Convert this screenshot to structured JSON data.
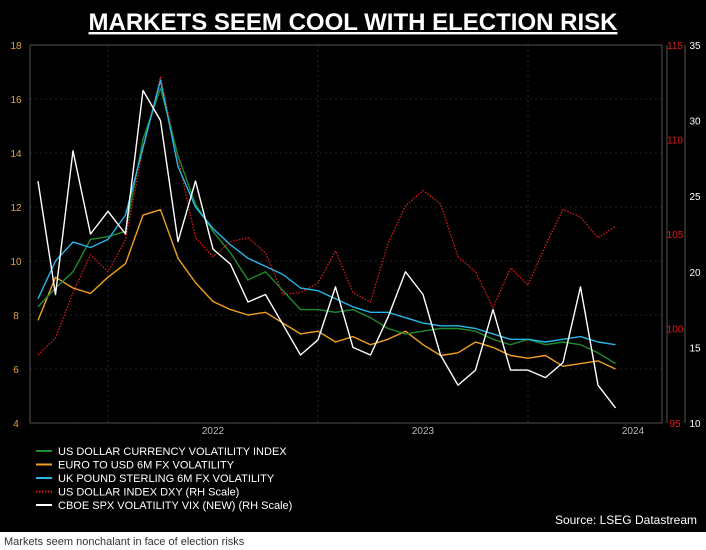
{
  "caption": "Markets seem nonchalant in face of election risks",
  "colors": {
    "background": "#000000",
    "title": "#ffffff",
    "left_axis": "#e8a33c",
    "right_axis_dxy": "#e01a1a",
    "right_axis_vix": "#ffffff",
    "grid": "#444444"
  },
  "chart_data": {
    "type": "line",
    "title": "MARKETS SEEM COOL WITH ELECTION RISK",
    "source": "Source: LSEG Datastream",
    "grid": true,
    "legend_position": "bottom-left",
    "x_ticks": [
      "2022",
      "2023",
      "2024"
    ],
    "x_dates": [
      "2021-09",
      "2021-10",
      "2021-11",
      "2021-12",
      "2022-01",
      "2022-02",
      "2022-03",
      "2022-04",
      "2022-05",
      "2022-06",
      "2022-07",
      "2022-08",
      "2022-09",
      "2022-10",
      "2022-11",
      "2022-12",
      "2023-01",
      "2023-02",
      "2023-03",
      "2023-04",
      "2023-05",
      "2023-06",
      "2023-07",
      "2023-08",
      "2023-09",
      "2023-10",
      "2023-11",
      "2023-12",
      "2024-01",
      "2024-02",
      "2024-03",
      "2024-04",
      "2024-05",
      "2024-06"
    ],
    "y_left": {
      "min": 4,
      "max": 18,
      "ticks": [
        "4",
        "6",
        "8",
        "10",
        "12",
        "14",
        "16",
        "18"
      ]
    },
    "y_right_dxy": {
      "min": 95,
      "max": 115,
      "ticks": [
        "95",
        "100",
        "105",
        "110",
        "115"
      ]
    },
    "y_right_vix": {
      "min": 10,
      "max": 35,
      "ticks": [
        "10",
        "15",
        "20",
        "25",
        "30",
        "35"
      ]
    },
    "series": [
      {
        "name": "US DOLLAR CURRENCY VOLATILITY INDEX",
        "axis": "left",
        "color": "#1f8a2e",
        "values": [
          8.3,
          9.0,
          9.6,
          10.8,
          10.9,
          11.1,
          14.5,
          16.4,
          13.9,
          12.1,
          11.1,
          10.3,
          9.3,
          9.6,
          8.9,
          8.2,
          8.2,
          8.1,
          8.2,
          7.9,
          7.5,
          7.3,
          7.4,
          7.5,
          7.5,
          7.4,
          7.1,
          6.9,
          7.1,
          6.9,
          7.0,
          6.9,
          6.6,
          6.2
        ]
      },
      {
        "name": "EURO TO USD 6M FX VOLATILITY",
        "axis": "left",
        "color": "#f0a020",
        "values": [
          7.8,
          9.4,
          9.0,
          8.8,
          9.4,
          9.9,
          11.7,
          11.9,
          10.1,
          9.2,
          8.5,
          8.2,
          8.0,
          8.1,
          7.7,
          7.3,
          7.4,
          7.0,
          7.2,
          6.9,
          7.1,
          7.4,
          6.9,
          6.5,
          6.6,
          7.0,
          6.8,
          6.5,
          6.4,
          6.5,
          6.1,
          6.2,
          6.3,
          6.0
        ]
      },
      {
        "name": "UK POUND STERLING 6M FX VOLATILITY",
        "axis": "left",
        "color": "#29b6e8",
        "values": [
          8.6,
          10.0,
          10.7,
          10.5,
          10.8,
          11.7,
          14.2,
          16.7,
          13.5,
          12.0,
          11.2,
          10.6,
          10.1,
          9.8,
          9.5,
          9.0,
          8.9,
          8.6,
          8.3,
          8.1,
          8.1,
          7.9,
          7.7,
          7.6,
          7.6,
          7.5,
          7.3,
          7.1,
          7.1,
          7.0,
          7.1,
          7.2,
          7.0,
          6.9
        ]
      },
      {
        "name": "US DOLLAR INDEX DXY (RH Scale)",
        "axis": "right_dxy",
        "color": "#e01a1a",
        "values": [
          98.6,
          99.5,
          101.9,
          103.9,
          103.0,
          104.7,
          109.5,
          113.3,
          109.0,
          104.8,
          103.8,
          104.6,
          104.8,
          104.0,
          101.8,
          101.9,
          102.4,
          104.1,
          101.9,
          101.4,
          104.5,
          106.5,
          107.3,
          106.6,
          103.8,
          103.0,
          101.1,
          103.2,
          102.3,
          104.4,
          106.3,
          105.9,
          104.8,
          105.4
        ]
      },
      {
        "name": "CBOE SPX VOLATILITY VIX (NEW) (RH Scale)",
        "axis": "right_vix",
        "color": "#ffffff",
        "values": [
          26.0,
          18.5,
          28.0,
          22.5,
          24.0,
          22.5,
          32.0,
          30.0,
          22.0,
          26.0,
          21.5,
          20.5,
          18.0,
          18.5,
          16.5,
          14.5,
          15.5,
          19.0,
          15.0,
          14.5,
          17.0,
          20.0,
          18.5,
          14.5,
          12.5,
          13.5,
          17.5,
          13.5,
          13.5,
          13.0,
          14.0,
          19.0,
          12.5,
          11.0
        ]
      }
    ]
  }
}
